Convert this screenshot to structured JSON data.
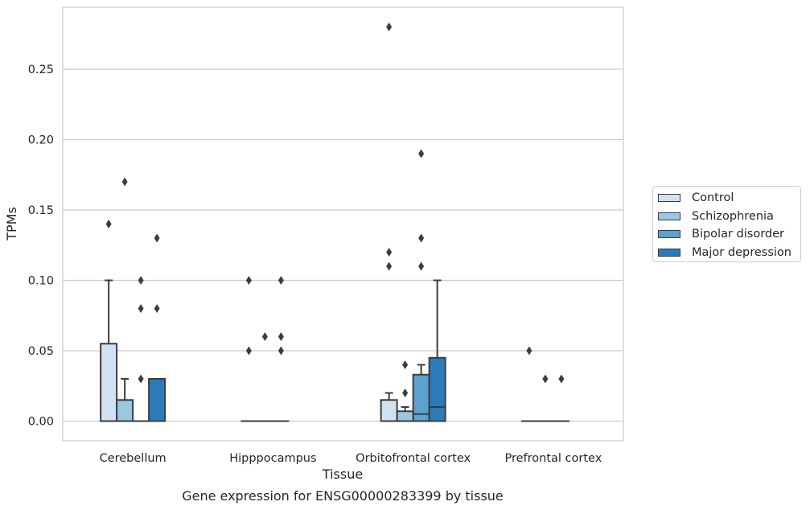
{
  "chart_data": {
    "type": "box",
    "title": "",
    "caption": "Gene expression for ENSG00000283399 by tissue",
    "xlabel": "Tissue",
    "ylabel": "TPMs",
    "ylim": [
      -0.014,
      0.294
    ],
    "yticks": [
      0.0,
      0.05,
      0.1,
      0.15,
      0.2,
      0.25
    ],
    "ytick_labels": [
      "0.00",
      "0.05",
      "0.10",
      "0.15",
      "0.20",
      "0.25"
    ],
    "categories": [
      "Cerebellum",
      "Hipppocampus",
      "Orbitofrontal cortex",
      "Prefrontal cortex"
    ],
    "grid": true,
    "legend_position": "right",
    "series": [
      {
        "name": "Control",
        "color": "#d1e2f2",
        "boxes": [
          {
            "q1": 0.0,
            "median": 0.0,
            "q3": 0.055,
            "whisker_low": 0.0,
            "whisker_high": 0.1,
            "outliers": [
              0.14
            ]
          },
          {
            "q1": 0.0,
            "median": 0.0,
            "q3": 0.0,
            "whisker_low": 0.0,
            "whisker_high": 0.0,
            "outliers": [
              0.05,
              0.1
            ]
          },
          {
            "q1": 0.0,
            "median": 0.0,
            "q3": 0.015,
            "whisker_low": 0.0,
            "whisker_high": 0.02,
            "outliers": [
              0.11,
              0.12,
              0.28
            ]
          },
          {
            "q1": 0.0,
            "median": 0.0,
            "q3": 0.0,
            "whisker_low": 0.0,
            "whisker_high": 0.0,
            "outliers": [
              0.05
            ]
          }
        ]
      },
      {
        "name": "Schizophrenia",
        "color": "#9ac8e0",
        "boxes": [
          {
            "q1": 0.0,
            "median": 0.0,
            "q3": 0.015,
            "whisker_low": 0.0,
            "whisker_high": 0.03,
            "outliers": [
              0.17
            ]
          },
          {
            "q1": 0.0,
            "median": 0.0,
            "q3": 0.0,
            "whisker_low": 0.0,
            "whisker_high": 0.0,
            "outliers": [
              0.06
            ]
          },
          {
            "q1": 0.0,
            "median": 0.0,
            "q3": 0.007,
            "whisker_low": 0.0,
            "whisker_high": 0.01,
            "outliers": [
              0.02,
              0.04
            ]
          },
          {
            "q1": 0.0,
            "median": 0.0,
            "q3": 0.0,
            "whisker_low": 0.0,
            "whisker_high": 0.0,
            "outliers": [
              0.03
            ]
          }
        ]
      },
      {
        "name": "Bipolar disorder",
        "color": "#5ba3cf",
        "boxes": [
          {
            "q1": 0.0,
            "median": 0.0,
            "q3": 0.0,
            "whisker_low": 0.0,
            "whisker_high": 0.0,
            "outliers": [
              0.03,
              0.08,
              0.1
            ]
          },
          {
            "q1": 0.0,
            "median": 0.0,
            "q3": 0.0,
            "whisker_low": 0.0,
            "whisker_high": 0.0,
            "outliers": [
              0.05,
              0.06,
              0.1
            ]
          },
          {
            "q1": 0.0,
            "median": 0.005,
            "q3": 0.033,
            "whisker_low": 0.0,
            "whisker_high": 0.04,
            "outliers": [
              0.11,
              0.13,
              0.19
            ]
          },
          {
            "q1": 0.0,
            "median": 0.0,
            "q3": 0.0,
            "whisker_low": 0.0,
            "whisker_high": 0.0,
            "outliers": [
              0.03
            ]
          }
        ]
      },
      {
        "name": "Major depression",
        "color": "#2b7bba",
        "boxes": [
          {
            "q1": 0.0,
            "median": 0.0,
            "q3": 0.03,
            "whisker_low": 0.0,
            "whisker_high": 0.03,
            "outliers": [
              0.08,
              0.13
            ]
          },
          null,
          {
            "q1": 0.0,
            "median": 0.01,
            "q3": 0.045,
            "whisker_low": 0.0,
            "whisker_high": 0.1,
            "outliers": []
          },
          null
        ]
      }
    ]
  }
}
